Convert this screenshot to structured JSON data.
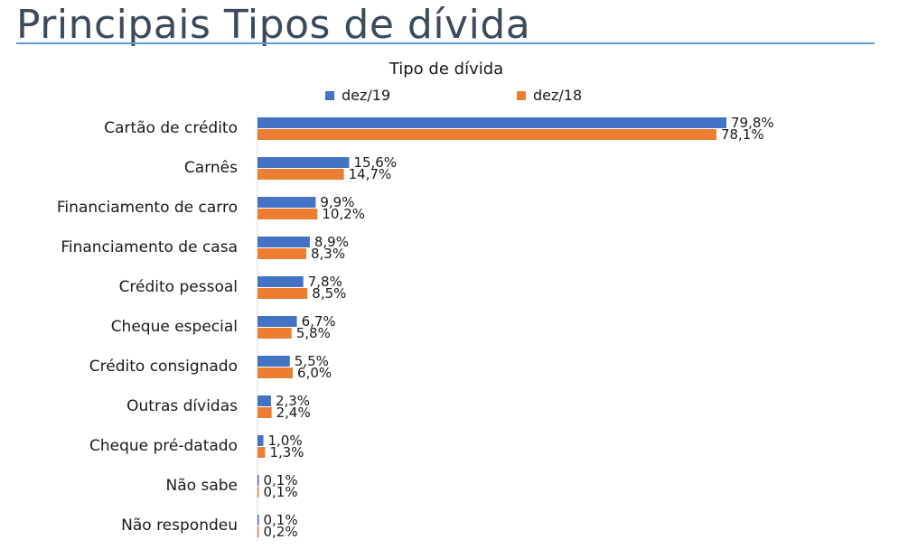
{
  "page": {
    "title": "Principais Tipos de dívida"
  },
  "chart_data": {
    "type": "bar",
    "orientation": "horizontal",
    "title": "Tipo de dívida",
    "legend": "top",
    "grid": false,
    "xlim": [
      0,
      100
    ],
    "categories": [
      "Cartão de crédito",
      "Carnês",
      "Financiamento de carro",
      "Financiamento de casa",
      "Crédito pessoal",
      "Cheque especial",
      "Crédito consignado",
      "Outras dívidas",
      "Cheque pré-datado",
      "Não sabe",
      "Não respondeu"
    ],
    "series": [
      {
        "name": "dez/19",
        "color": "#4472c4",
        "values": [
          79.8,
          15.6,
          9.9,
          8.9,
          7.8,
          6.7,
          5.5,
          2.3,
          1.0,
          0.1,
          0.1
        ],
        "labels": [
          "79,8%",
          "15,6%",
          "9,9%",
          "8,9%",
          "7,8%",
          "6,7%",
          "5,5%",
          "2,3%",
          "1,0%",
          "0,1%",
          "0,1%"
        ]
      },
      {
        "name": "dez/18",
        "color": "#ed7d31",
        "values": [
          78.1,
          14.7,
          10.2,
          8.3,
          8.5,
          5.8,
          6.0,
          2.4,
          1.3,
          0.1,
          0.2
        ],
        "labels": [
          "78,1%",
          "14,7%",
          "10,2%",
          "8,3%",
          "8,5%",
          "5,8%",
          "6,0%",
          "2,4%",
          "1,3%",
          "0,1%",
          "0,2%"
        ]
      }
    ]
  }
}
